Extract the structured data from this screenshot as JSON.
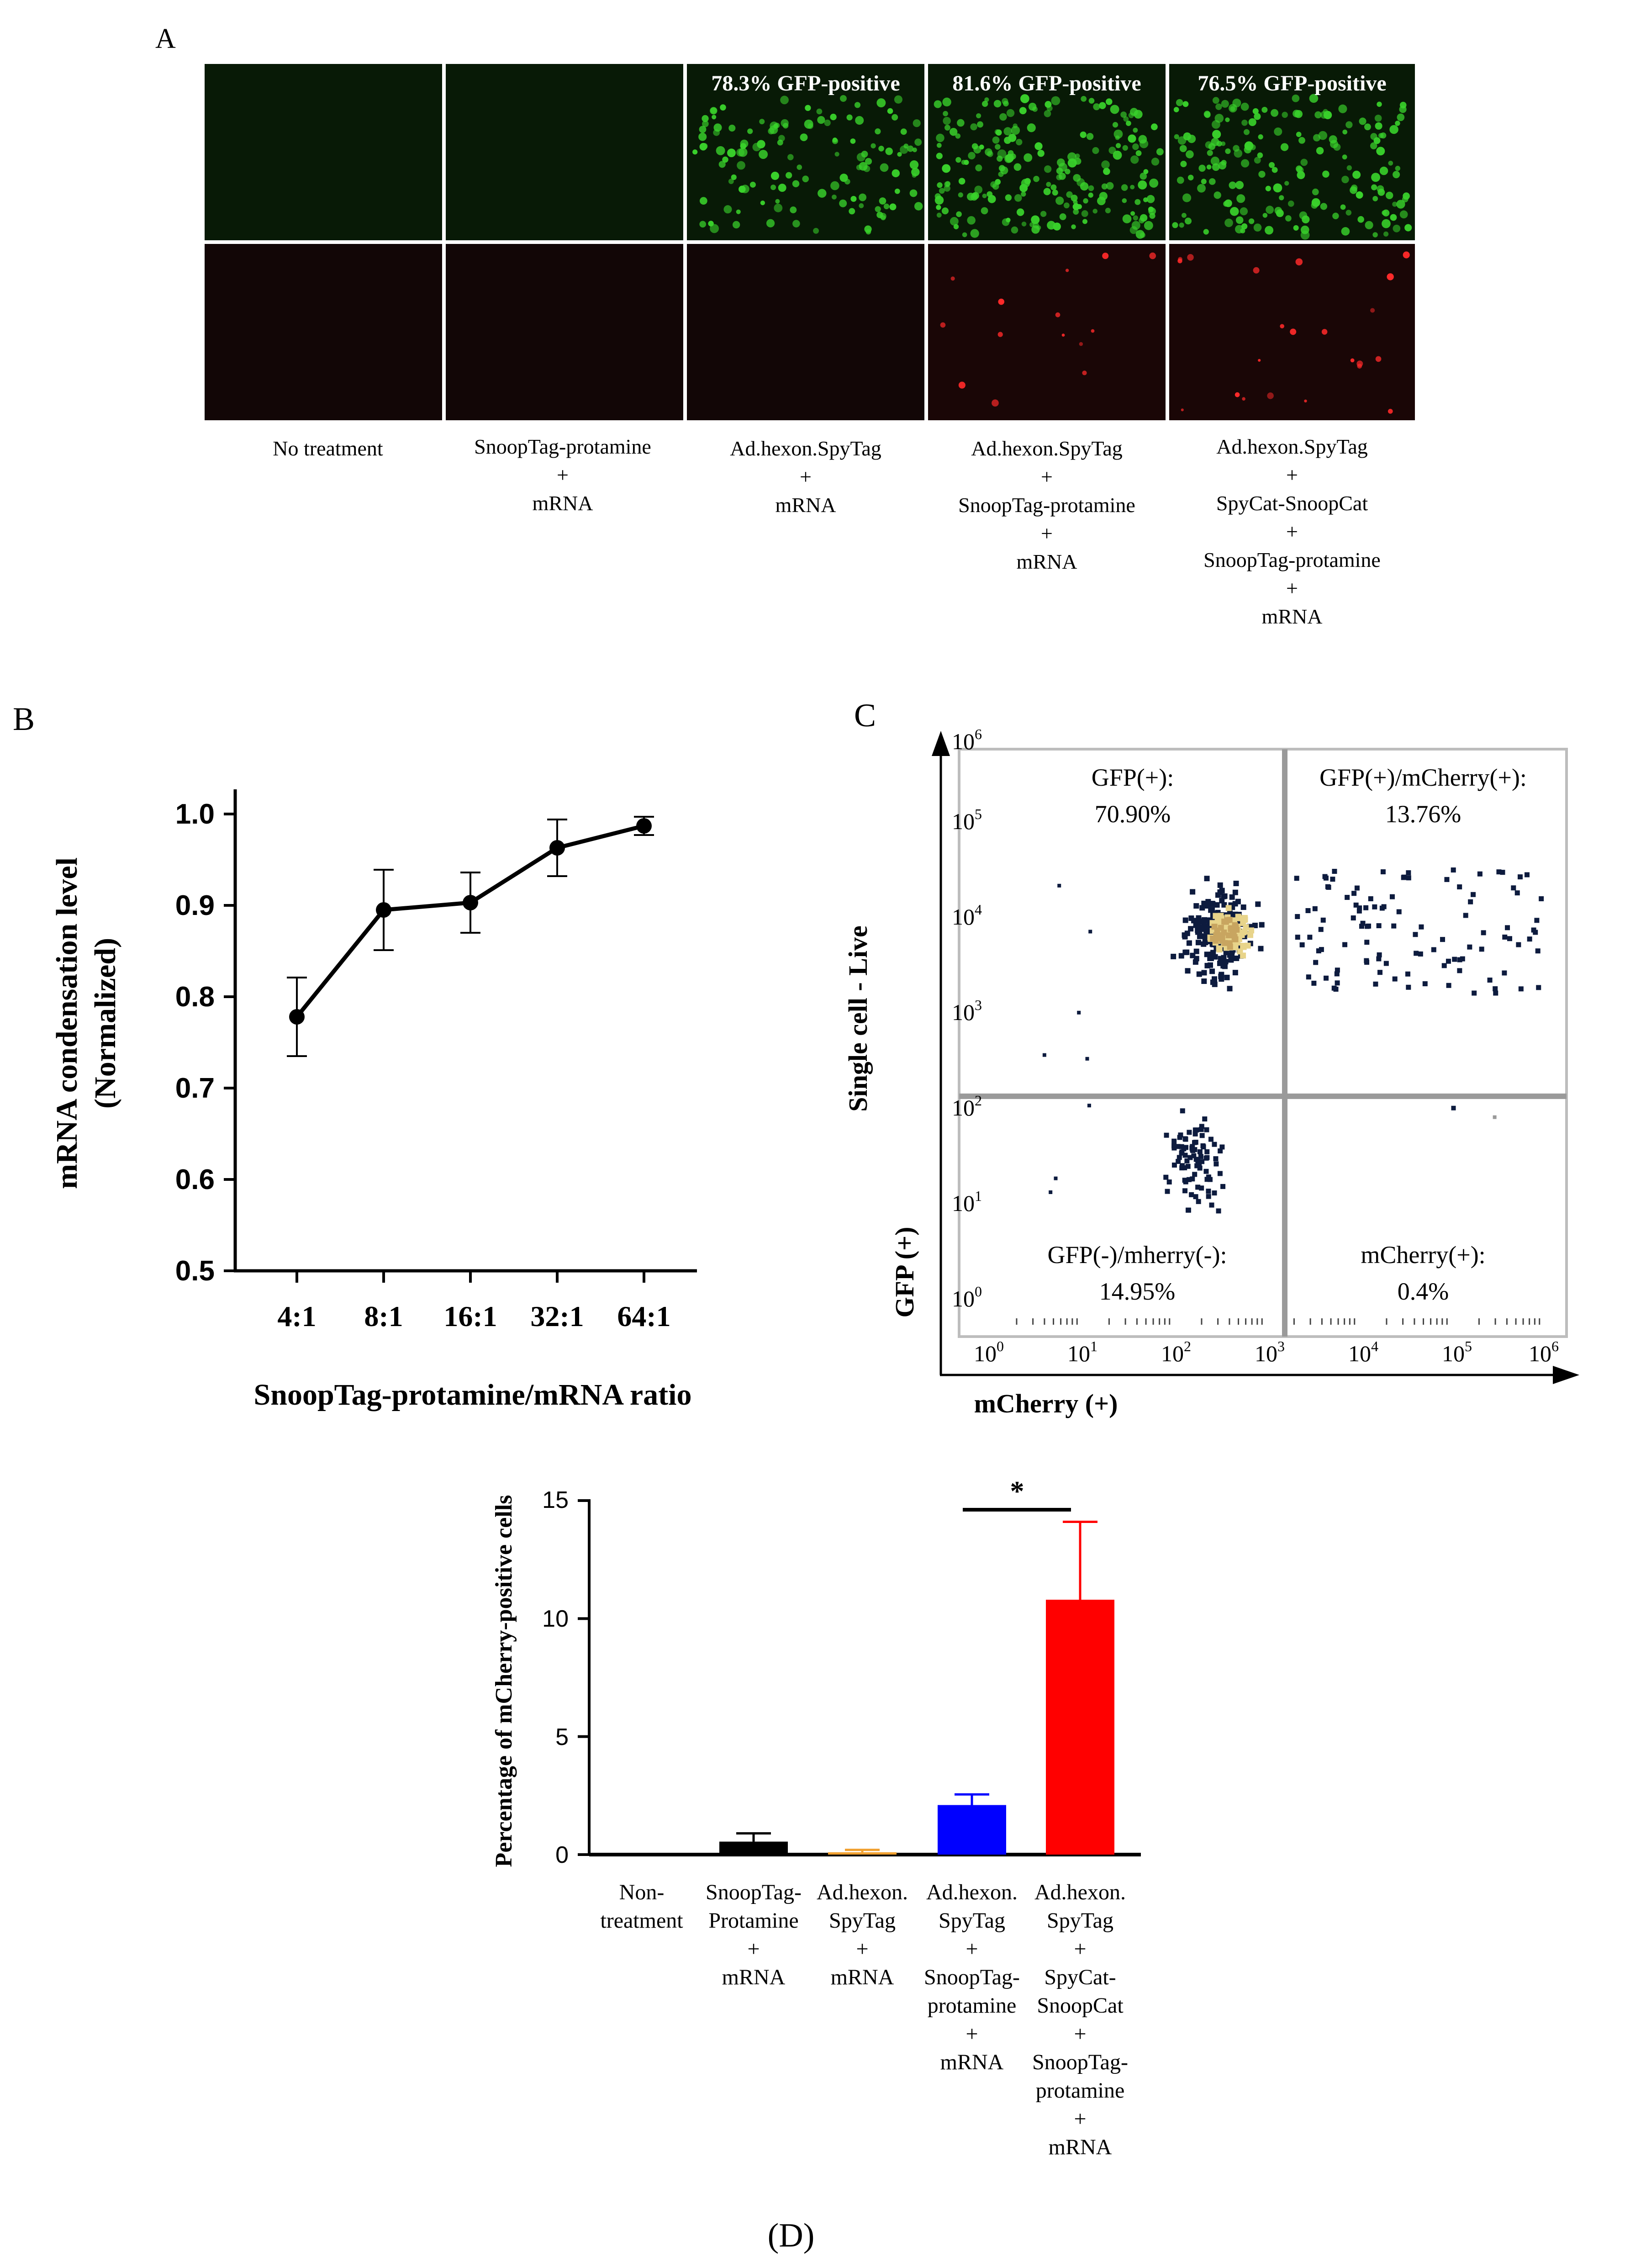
{
  "panel_letters": {
    "a": "A",
    "b": "B",
    "c": "C",
    "d": "(D)"
  },
  "panel_a": {
    "overlays": [
      "78.3% GFP-positive",
      "81.6% GFP-positive",
      "76.5% GFP-positive"
    ],
    "conditions": [
      [
        "No treatment"
      ],
      [
        "SnoopTag-protamine",
        "+",
        "mRNA"
      ],
      [
        "Ad.hexon.SpyTag",
        "+",
        "mRNA"
      ],
      [
        "Ad.hexon.SpyTag",
        "+",
        "SnoopTag-protamine",
        "+",
        "mRNA"
      ],
      [
        "Ad.hexon.SpyTag",
        "+",
        "SpyCat-SnoopCat",
        "+",
        "SnoopTag-protamine",
        "+",
        "mRNA"
      ]
    ],
    "colors": {
      "gfp": "#39d12b",
      "mcherry": "#ff2a2a",
      "dark_green": "#081a06",
      "dark_red": "#1a0606"
    }
  },
  "chart_data": [
    {
      "panel": "B",
      "type": "line",
      "title": "",
      "xlabel": "SnoopTag-protamine/mRNA ratio",
      "ylabel": "mRNA condensation level",
      "ylabel_sub": "(Normalized)",
      "categories": [
        "4:1",
        "8:1",
        "16:1",
        "32:1",
        "64:1"
      ],
      "values": [
        0.778,
        0.895,
        0.903,
        0.963,
        0.987
      ],
      "errors": [
        0.043,
        0.044,
        0.033,
        0.031,
        0.01
      ],
      "ylim": [
        0.5,
        1.0
      ],
      "yticks": [
        "0.5",
        "0.6",
        "0.7",
        "0.8",
        "0.9",
        "1.0"
      ]
    },
    {
      "panel": "C",
      "type": "scatter",
      "subtype": "flow-cytometry density plot",
      "xlabel": "mCherry (+)",
      "ylabel_main": "Single cell - Live",
      "ylabel_sub": "GFP (+)",
      "xticks": [
        "0",
        "1",
        "2",
        "3",
        "4",
        "5",
        "6"
      ],
      "yticks": [
        "0",
        "1",
        "2",
        "3",
        "4",
        "5",
        "6"
      ],
      "tick_base": "10",
      "xlim_log10": [
        0,
        6
      ],
      "ylim_log10": [
        0,
        6
      ],
      "gate_log10": {
        "x": 3.2,
        "y": 2.2
      },
      "quadrants": [
        {
          "label": "GFP(+):",
          "value": "70.90%"
        },
        {
          "label": "GFP(+)/mCherry(+):",
          "value": "13.76%"
        },
        {
          "label": "GFP(-)/mherry(-):",
          "value": "14.95%"
        },
        {
          "label": "mCherry(+):",
          "value": "0.4%"
        }
      ]
    },
    {
      "panel": "D",
      "type": "bar",
      "ylabel": "Percentage of mCherry-positive cells",
      "ylim": [
        0,
        15
      ],
      "yticks": [
        "0",
        "5",
        "10",
        "15"
      ],
      "categories": [
        [
          "Non-",
          "treatment"
        ],
        [
          "SnoopTag-",
          "Protamine",
          "+",
          "mRNA"
        ],
        [
          "Ad.hexon.",
          "SpyTag",
          "+",
          "mRNA"
        ],
        [
          "Ad.hexon.",
          "SpyTag",
          "+",
          "SnoopTag-",
          "protamine",
          "+",
          "mRNA"
        ],
        [
          "Ad.hexon.",
          "SpyTag",
          "+",
          "SpyCat-",
          "SnoopCat",
          "+",
          "SnoopTag-",
          "protamine",
          "+",
          "mRNA"
        ]
      ],
      "values": [
        0.0,
        0.55,
        0.1,
        2.1,
        10.8
      ],
      "errors": [
        0.0,
        0.35,
        0.1,
        0.45,
        3.3
      ],
      "colors": [
        "#000000",
        "#000000",
        "#f0a030",
        "#0000ff",
        "#ff0000"
      ],
      "significance": {
        "label": "*",
        "between": [
          3,
          4
        ]
      }
    }
  ]
}
